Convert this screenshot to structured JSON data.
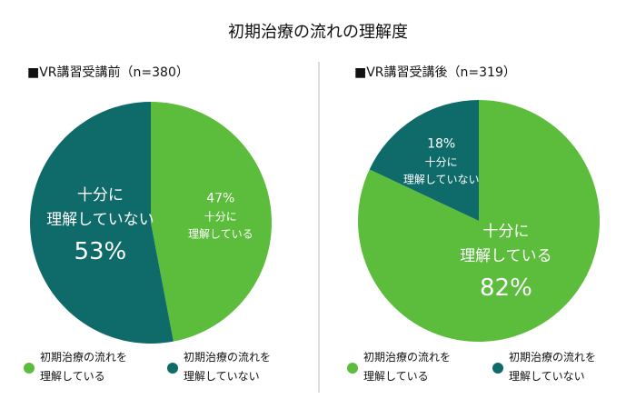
{
  "title": "初期治療の流れの理解度",
  "chart_data": [
    {
      "type": "pie",
      "title": "■VR講習受講前（n=380）",
      "categories": [
        "初期治療の流れを\n理解している",
        "初期治療の流れを\n理解していない"
      ],
      "values": [
        47,
        53
      ],
      "value_labels": [
        "47%",
        "53%"
      ],
      "slice_labels": [
        "十分に\n理解している",
        "十分に\n理解していない"
      ],
      "colors": [
        "#5cbd3c",
        "#0f6a6a"
      ]
    },
    {
      "type": "pie",
      "title": "■VR講習受講後（n=319）",
      "categories": [
        "初期治療の流れを\n理解している",
        "初期治療の流れを\n理解していない"
      ],
      "values": [
        82,
        18
      ],
      "value_labels": [
        "82%",
        "18%"
      ],
      "slice_labels": [
        "十分に\n理解している",
        "十分に\n理解していない"
      ],
      "colors": [
        "#5cbd3c",
        "#0f6a6a"
      ]
    }
  ]
}
